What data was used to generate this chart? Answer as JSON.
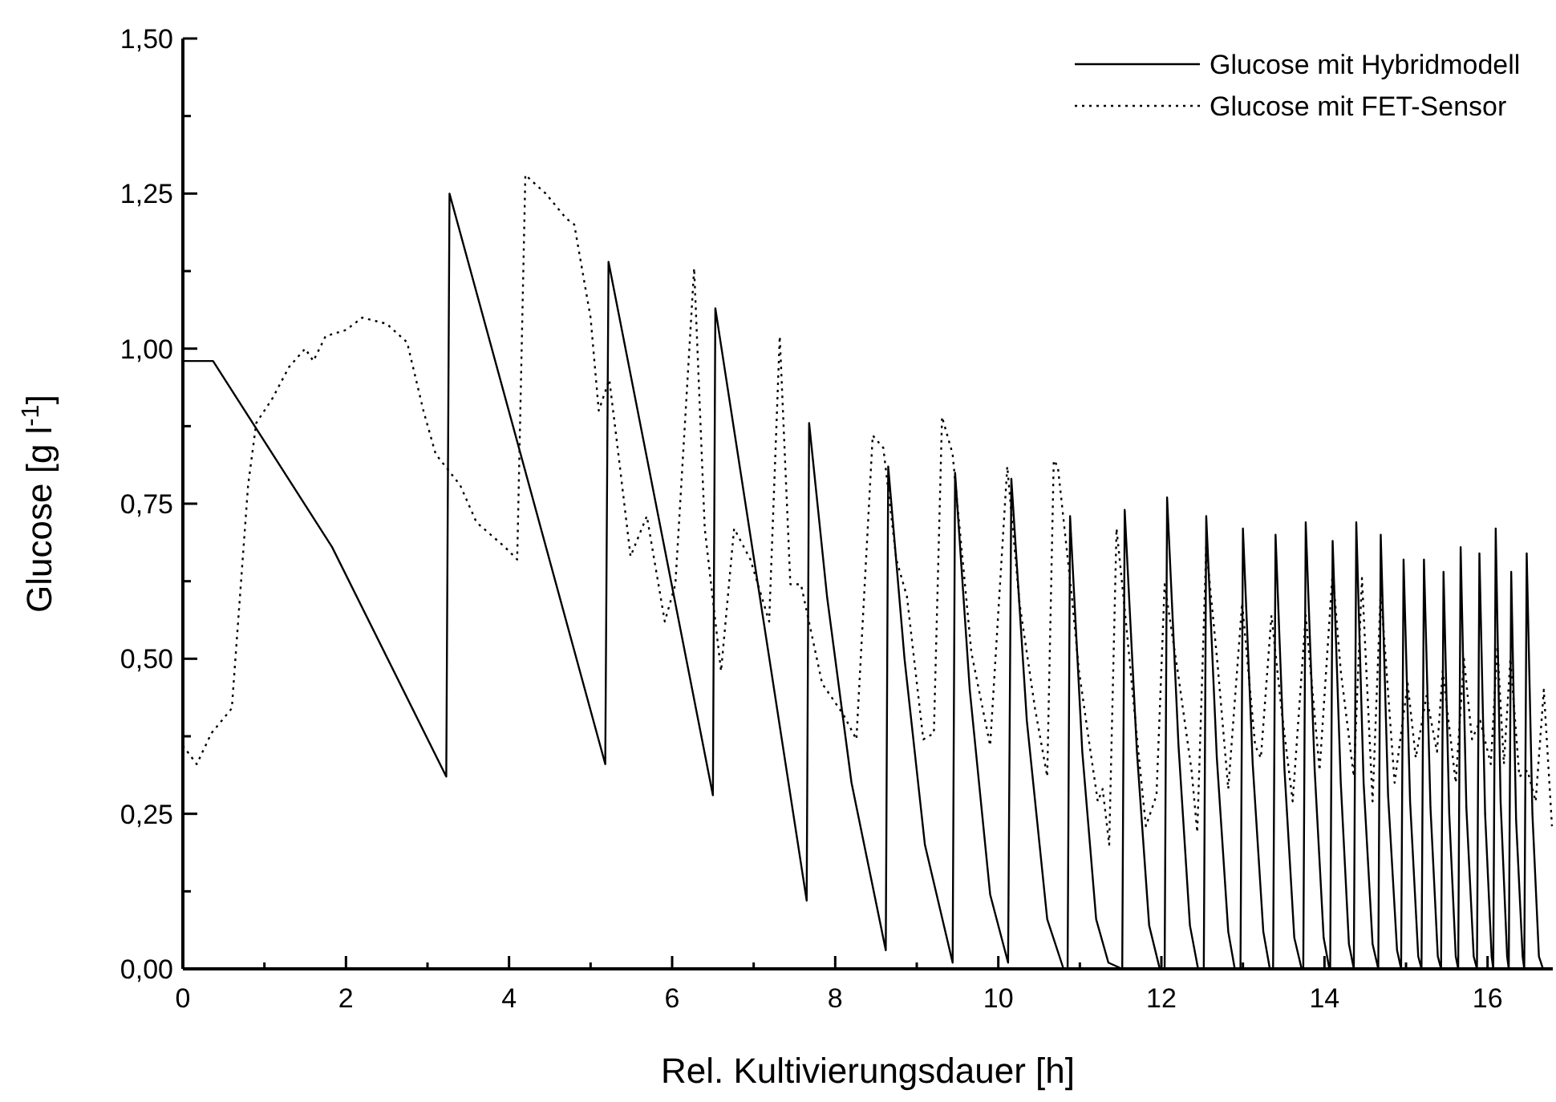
{
  "chart_data": {
    "type": "line",
    "xlabel": "Rel. Kultivierungsdauer [h]",
    "ylabel": "Glucose [g l$^{-1}$]",
    "xlim": [
      0,
      16.8
    ],
    "ylim": [
      0,
      1.5
    ],
    "xticks": [
      0,
      {
        "value": 1,
        "label": null
      },
      2,
      {
        "value": 3,
        "label": null
      },
      4,
      {
        "value": 5,
        "label": null
      },
      6,
      {
        "value": 7,
        "label": null
      },
      8,
      {
        "value": 9,
        "label": null
      },
      10,
      {
        "value": 11,
        "label": null
      },
      12,
      {
        "value": 13,
        "label": null
      },
      14,
      {
        "value": 15,
        "label": null
      },
      16
    ],
    "yticks": [
      {
        "value": 0,
        "label": "0,00"
      },
      {
        "value": 0.125,
        "label": null
      },
      {
        "value": 0.25,
        "label": "0,25"
      },
      {
        "value": 0.375,
        "label": null
      },
      {
        "value": 0.5,
        "label": "0,50"
      },
      {
        "value": 0.625,
        "label": null
      },
      {
        "value": 0.75,
        "label": "0,75"
      },
      {
        "value": 0.875,
        "label": null
      },
      {
        "value": 1,
        "label": "1,00"
      },
      {
        "value": 1.125,
        "label": null
      },
      {
        "value": 1.25,
        "label": "1,25"
      },
      {
        "value": 1.375,
        "label": null
      },
      {
        "value": 1.5,
        "label": "1,50"
      }
    ],
    "grid": false,
    "legend": "top right",
    "marker": "none",
    "series": [
      {
        "name": "Glucose mit Hybridmodell",
        "color": "#000000",
        "line_style": "solid",
        "x": [
          0,
          0.37,
          1.83,
          3.23,
          3.27,
          5.18,
          5.22,
          6.5,
          6.53,
          7.65,
          7.68,
          7.9,
          8.2,
          8.62,
          8.65,
          8.85,
          9.1,
          9.44,
          9.47,
          9.65,
          9.9,
          10.12,
          10.16,
          10.35,
          10.6,
          10.8,
          10.85,
          10.88,
          11.03,
          11.2,
          11.35,
          11.52,
          11.55,
          11.7,
          11.85,
          11.98,
          12.04,
          12.07,
          12.21,
          12.35,
          12.45,
          12.52,
          12.55,
          12.68,
          12.82,
          12.9,
          12.97,
          13.0,
          13.12,
          13.25,
          13.33,
          13.37,
          13.4,
          13.51,
          13.63,
          13.72,
          13.74,
          13.77,
          13.88,
          13.99,
          14.06,
          14.07,
          14.1,
          14.2,
          14.3,
          14.36,
          14.39,
          14.48,
          14.59,
          14.66,
          14.69,
          14.78,
          14.89,
          14.94,
          14.97,
          15.05,
          15.15,
          15.19,
          15.22,
          15.3,
          15.39,
          15.43,
          15.46,
          15.53,
          15.61,
          15.64,
          15.67,
          15.74,
          15.83,
          15.87,
          15.9,
          15.97,
          16.05,
          16.07,
          16.1,
          16.16,
          16.24,
          16.26,
          16.29,
          16.35,
          16.43,
          16.45,
          16.48,
          16.55,
          16.63,
          16.68,
          16.8
        ],
        "values": [
          0.98,
          0.98,
          0.68,
          0.31,
          1.25,
          0.33,
          1.14,
          0.28,
          1.065,
          0.11,
          0.88,
          0.6,
          0.3,
          0.03,
          0.81,
          0.5,
          0.2,
          0.01,
          0.8,
          0.45,
          0.12,
          0.01,
          0.79,
          0.4,
          0.08,
          0,
          0,
          0.73,
          0.35,
          0.08,
          0.01,
          0,
          0.74,
          0.35,
          0.07,
          0,
          0,
          0.76,
          0.36,
          0.07,
          0,
          0,
          0.73,
          0.34,
          0.06,
          0,
          0,
          0.71,
          0.33,
          0.06,
          0,
          0,
          0.7,
          0.32,
          0.05,
          0,
          0,
          0.72,
          0.32,
          0.05,
          0,
          0,
          0.69,
          0.3,
          0.04,
          0,
          0.72,
          0.3,
          0.04,
          0,
          0.7,
          0.28,
          0.03,
          0,
          0.66,
          0.27,
          0.02,
          0,
          0.66,
          0.26,
          0.02,
          0,
          0.64,
          0.25,
          0.02,
          0,
          0.68,
          0.26,
          0.02,
          0,
          0.67,
          0.25,
          0.02,
          0,
          0.71,
          0.27,
          0.02,
          0,
          0.64,
          0.24,
          0.02,
          0,
          0.67,
          0.25,
          0.02,
          0,
          0
        ]
      },
      {
        "name": "Glucose mit FET-Sensor",
        "color": "#000000",
        "line_style": "dotted",
        "x": [
          0,
          0.17,
          0.35,
          0.6,
          0.7,
          0.8,
          0.9,
          1.1,
          1.3,
          1.5,
          1.6,
          1.75,
          2.0,
          2.2,
          2.5,
          2.75,
          2.95,
          3.1,
          3.4,
          3.6,
          3.95,
          4.1,
          4.2,
          4.45,
          4.7,
          4.8,
          5.0,
          5.1,
          5.23,
          5.35,
          5.49,
          5.69,
          5.91,
          6.04,
          6.27,
          6.4,
          6.6,
          6.76,
          6.96,
          7.19,
          7.32,
          7.45,
          7.58,
          7.71,
          7.84,
          8.1,
          8.26,
          8.46,
          8.59,
          8.75,
          8.88,
          9.08,
          9.21,
          9.31,
          9.44,
          9.67,
          9.9,
          10.11,
          10.26,
          10.45,
          10.6,
          10.68,
          10.73,
          10.91,
          10.99,
          11.12,
          11.22,
          11.28,
          11.36,
          11.45,
          11.55,
          11.71,
          11.81,
          11.94,
          12.04,
          12.2,
          12.37,
          12.44,
          12.55,
          12.69,
          12.82,
          12.99,
          13.15,
          13.22,
          13.35,
          13.48,
          13.61,
          13.77,
          13.94,
          14.1,
          14.2,
          14.36,
          14.46,
          14.59,
          14.69,
          14.86,
          15.02,
          15.12,
          15.25,
          15.38,
          15.45,
          15.61,
          15.71,
          15.81,
          15.91,
          16.04,
          16.12,
          16.2,
          16.28,
          16.39,
          16.49,
          16.59,
          16.69,
          16.79
        ],
        "values": [
          0.36,
          0.33,
          0.38,
          0.42,
          0.6,
          0.78,
          0.88,
          0.92,
          0.97,
          1.0,
          0.98,
          1.02,
          1.03,
          1.05,
          1.04,
          1.01,
          0.9,
          0.83,
          0.78,
          0.72,
          0.68,
          0.66,
          1.28,
          1.25,
          1.21,
          1.2,
          1.05,
          0.9,
          0.95,
          0.82,
          0.665,
          0.73,
          0.56,
          0.62,
          1.13,
          0.71,
          0.48,
          0.71,
          0.66,
          0.56,
          1.02,
          0.62,
          0.62,
          0.54,
          0.46,
          0.41,
          0.37,
          0.86,
          0.84,
          0.66,
          0.6,
          0.37,
          0.38,
          0.89,
          0.83,
          0.51,
          0.36,
          0.81,
          0.59,
          0.42,
          0.31,
          0.82,
          0.81,
          0.59,
          0.48,
          0.36,
          0.27,
          0.29,
          0.2,
          0.71,
          0.58,
          0.36,
          0.23,
          0.28,
          0.62,
          0.48,
          0.32,
          0.22,
          0.68,
          0.49,
          0.29,
          0.59,
          0.36,
          0.34,
          0.57,
          0.41,
          0.27,
          0.57,
          0.32,
          0.64,
          0.48,
          0.31,
          0.63,
          0.27,
          0.61,
          0.3,
          0.46,
          0.34,
          0.44,
          0.35,
          0.48,
          0.3,
          0.5,
          0.37,
          0.4,
          0.33,
          0.52,
          0.33,
          0.5,
          0.31,
          0.32,
          0.27,
          0.45,
          0.23
        ]
      }
    ]
  }
}
